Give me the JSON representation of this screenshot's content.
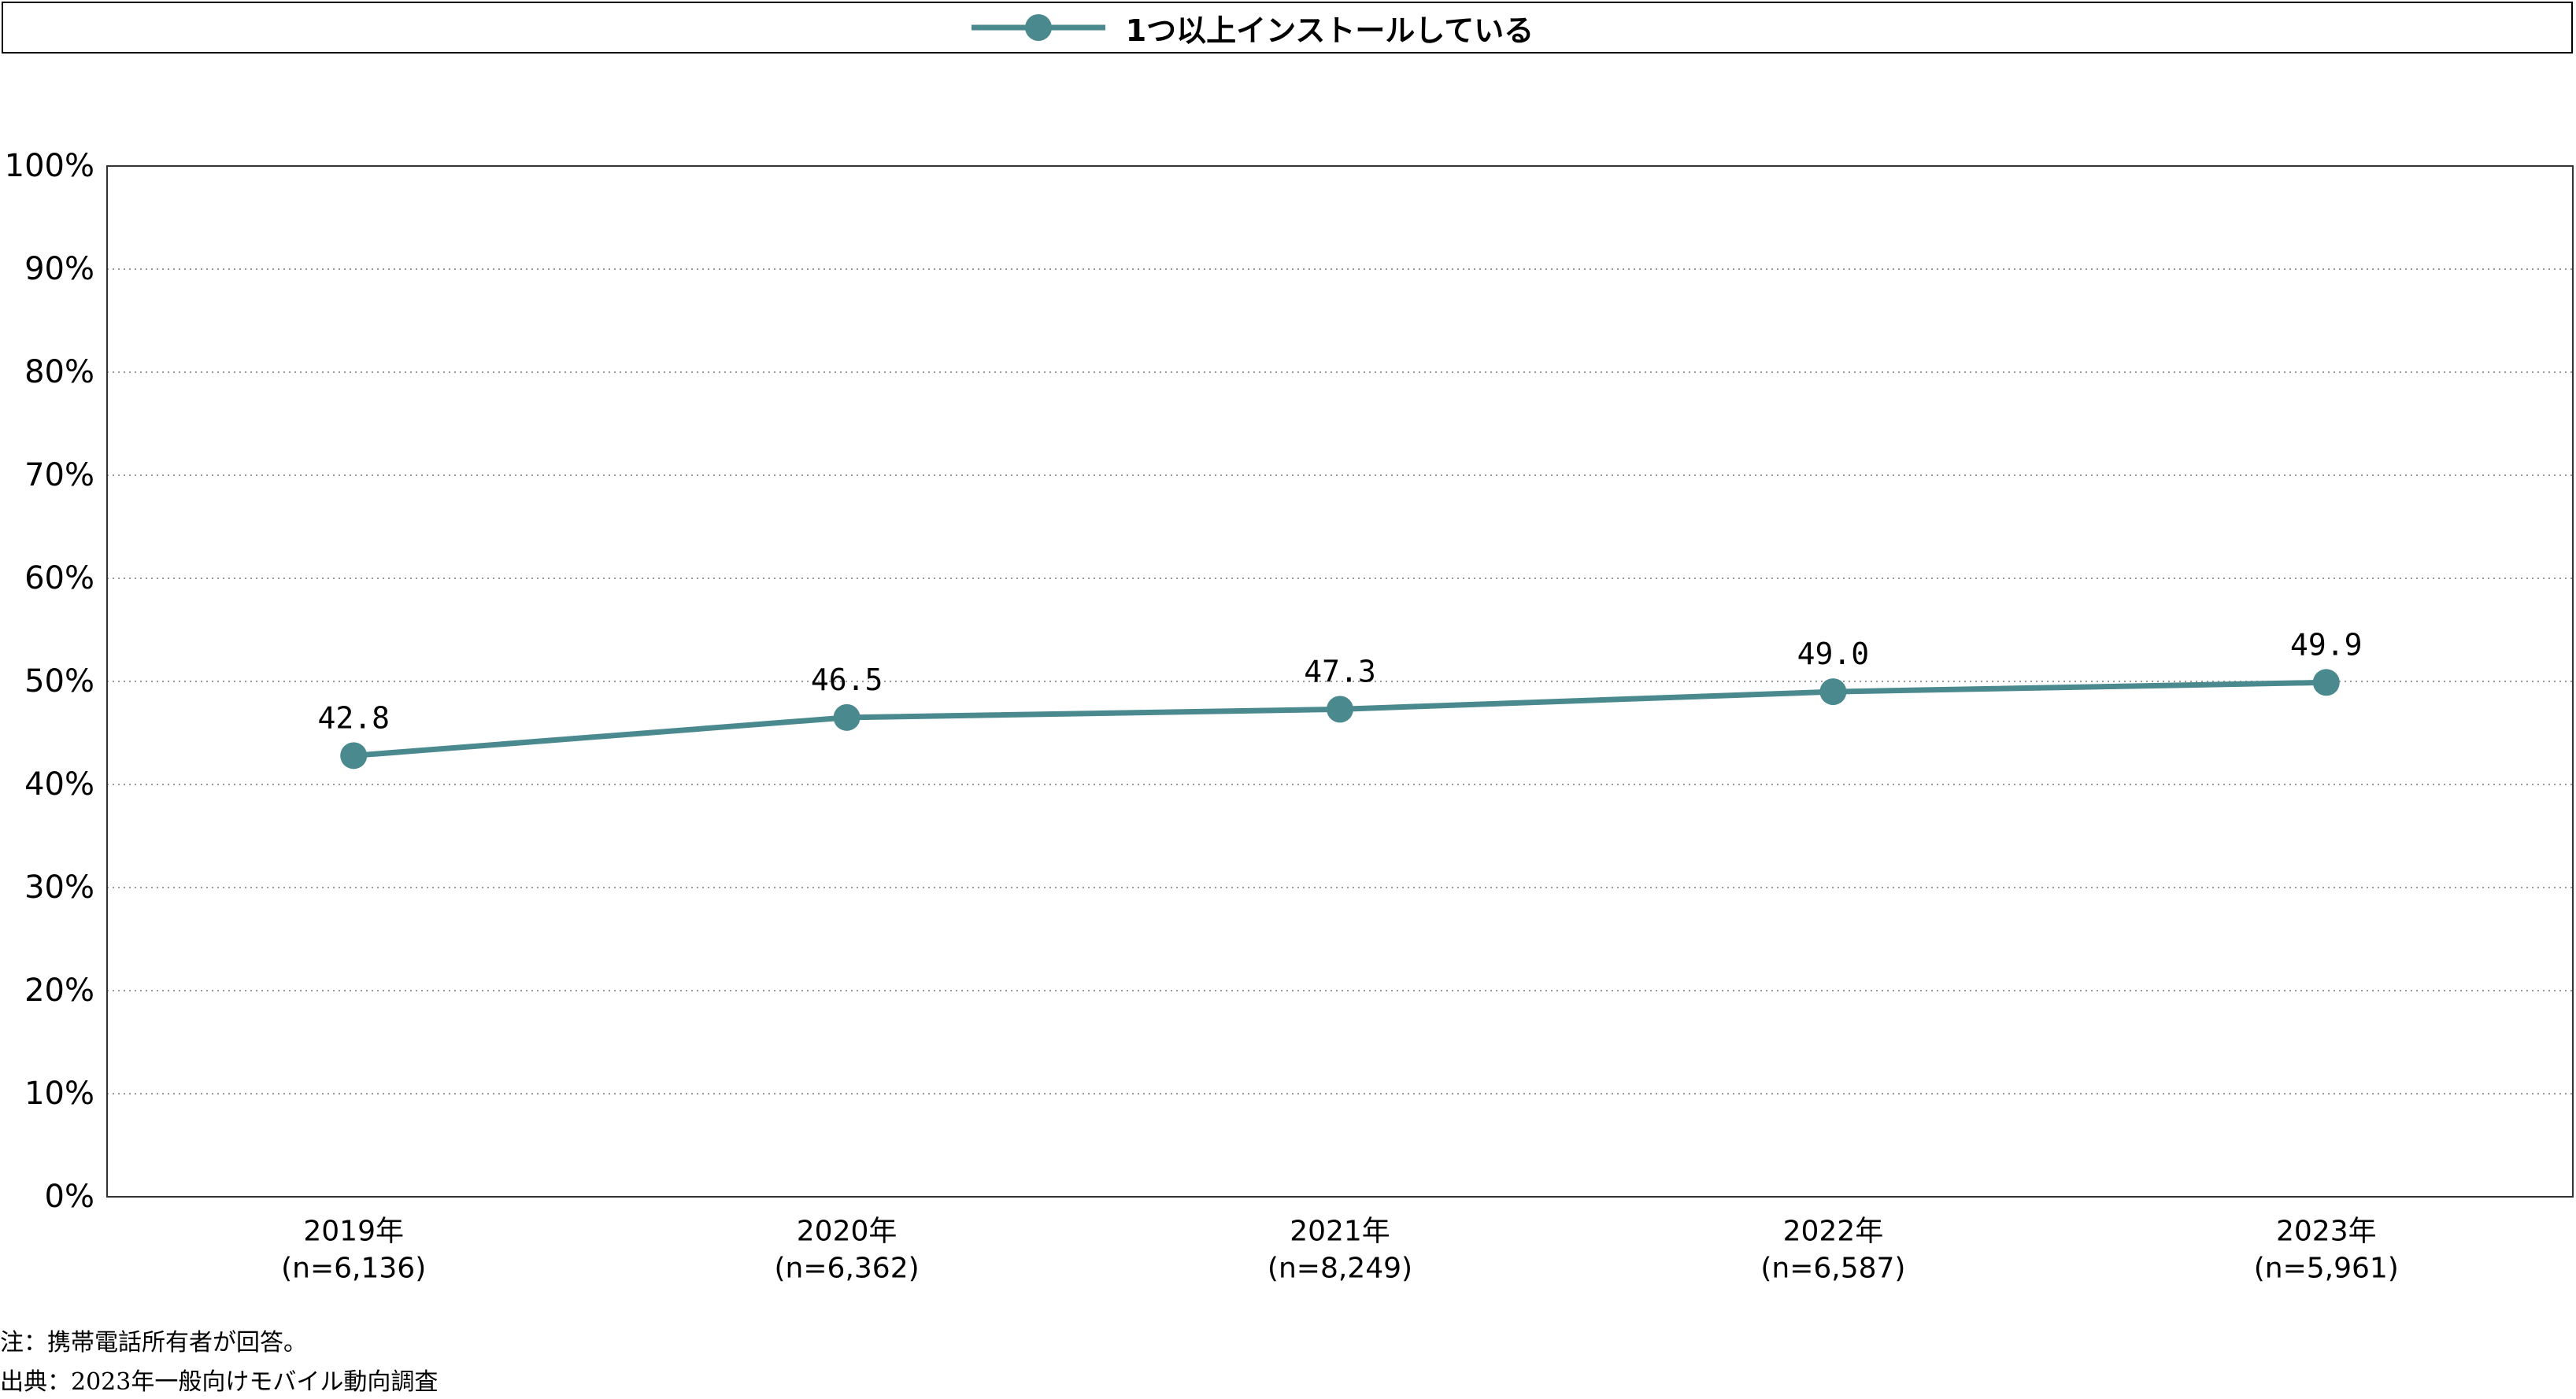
{
  "chart_data": {
    "type": "line",
    "categories": [
      "2019年",
      "2020年",
      "2021年",
      "2022年",
      "2023年"
    ],
    "category_sublabels": [
      "(n=6,136)",
      "(n=6,362)",
      "(n=8,249)",
      "(n=6,587)",
      "(n=5,961)"
    ],
    "series": [
      {
        "name": "1つ以上インストールしている",
        "values": [
          42.8,
          46.5,
          47.3,
          49.0,
          49.9
        ],
        "data_labels": [
          "42.8",
          "46.5",
          "47.3",
          "49.0",
          "49.9"
        ],
        "color": "#4a8a8f"
      }
    ],
    "y_ticks": [
      "0%",
      "10%",
      "20%",
      "30%",
      "40%",
      "50%",
      "60%",
      "70%",
      "80%",
      "90%",
      "100%"
    ],
    "ylim": [
      0,
      100
    ],
    "grid": true,
    "legend": "top-center"
  },
  "notes": {
    "note": "注：携帯電話所有者が回答。",
    "source": "出典：2023年一般向けモバイル動向調査"
  }
}
